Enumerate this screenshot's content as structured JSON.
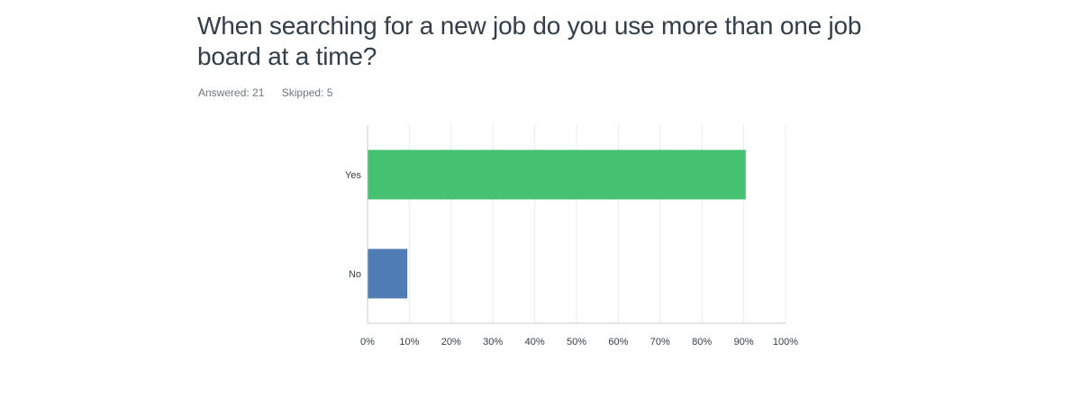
{
  "question": {
    "title": "When searching for a new job do you use more than one job board at a time?",
    "answered_label": "Answered: 21",
    "skipped_label": "Skipped: 5"
  },
  "colors": {
    "yes_bar": "#44c171",
    "no_bar": "#507cb6",
    "grid": "#e9ebec",
    "axis": "#c7cbcd"
  },
  "chart_data": {
    "type": "bar",
    "orientation": "horizontal",
    "categories": [
      "Yes",
      "No"
    ],
    "values": [
      90.48,
      9.52
    ],
    "xlim": [
      0,
      100
    ],
    "xticks": [
      "0%",
      "10%",
      "20%",
      "30%",
      "40%",
      "50%",
      "60%",
      "70%",
      "80%",
      "90%",
      "100%"
    ],
    "grid": true
  }
}
